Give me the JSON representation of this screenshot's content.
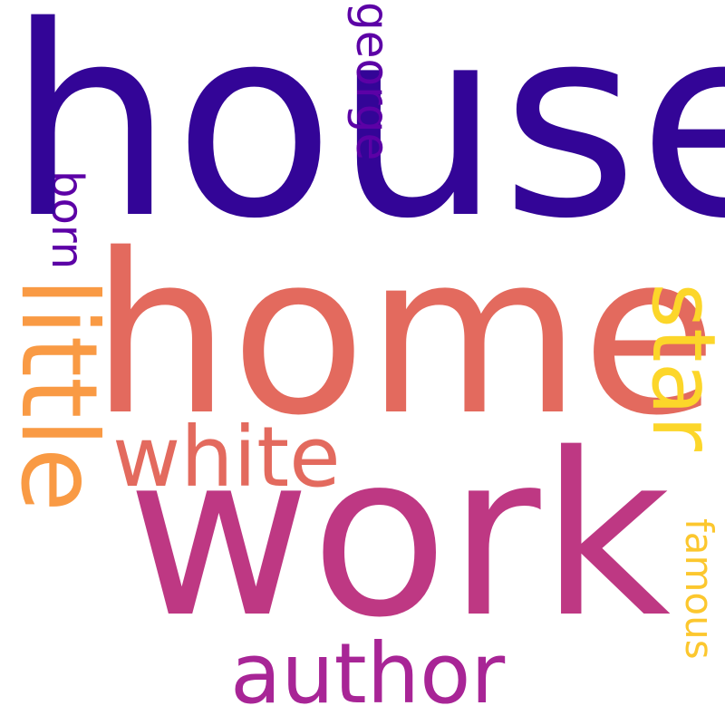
{
  "words": {
    "house": {
      "text": "house",
      "color": "#330597"
    },
    "home": {
      "text": "home",
      "color": "#e36a5e"
    },
    "work": {
      "text": "work",
      "color": "#be3883"
    },
    "white": {
      "text": "white",
      "color": "#e36a5e"
    },
    "author": {
      "text": "author",
      "color": "#a82596"
    },
    "george": {
      "text": "george",
      "color": "#5c01a6"
    },
    "born": {
      "text": "born",
      "color": "#5c01a6"
    },
    "little": {
      "text": "little",
      "color": "#f99a44"
    },
    "star": {
      "text": "star",
      "color": "#fcd62a"
    },
    "famous": {
      "text": "famous",
      "color": "#fcc72e"
    }
  }
}
